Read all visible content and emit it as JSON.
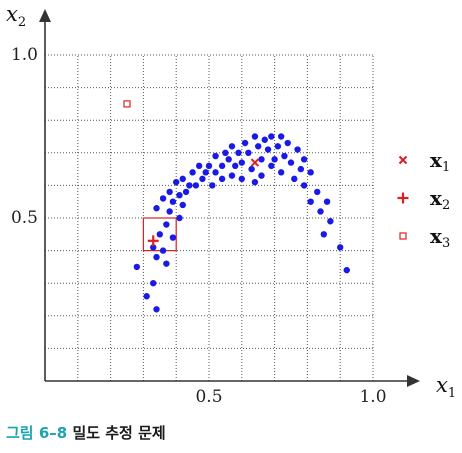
{
  "caption": {
    "figure": "그림 6–8",
    "title": "밀도 추정 문제"
  },
  "colors": {
    "points": "#1a1ae6",
    "markers": "#e02020",
    "grid": "#555555",
    "axis": "#333333"
  },
  "chart_data": {
    "type": "scatter",
    "xlabel": "x1",
    "ylabel": "x2",
    "xlim": [
      0,
      1.1
    ],
    "ylim": [
      0,
      1.1
    ],
    "xticks": [
      0.5,
      1.0
    ],
    "yticks": [
      0.5,
      1.0
    ],
    "xtick_labels": [
      "0.5",
      "1.0"
    ],
    "ytick_labels": [
      "0.5",
      "1.0"
    ],
    "grid": true,
    "legend_position": "right",
    "points": [
      [
        0.28,
        0.35
      ],
      [
        0.31,
        0.26
      ],
      [
        0.34,
        0.22
      ],
      [
        0.33,
        0.3
      ],
      [
        0.37,
        0.36
      ],
      [
        0.34,
        0.38
      ],
      [
        0.33,
        0.41
      ],
      [
        0.36,
        0.4
      ],
      [
        0.35,
        0.45
      ],
      [
        0.39,
        0.44
      ],
      [
        0.37,
        0.48
      ],
      [
        0.34,
        0.53
      ],
      [
        0.38,
        0.52
      ],
      [
        0.41,
        0.5
      ],
      [
        0.36,
        0.56
      ],
      [
        0.39,
        0.55
      ],
      [
        0.42,
        0.54
      ],
      [
        0.38,
        0.58
      ],
      [
        0.41,
        0.57
      ],
      [
        0.4,
        0.61
      ],
      [
        0.43,
        0.58
      ],
      [
        0.42,
        0.62
      ],
      [
        0.44,
        0.6
      ],
      [
        0.45,
        0.64
      ],
      [
        0.46,
        0.6
      ],
      [
        0.48,
        0.62
      ],
      [
        0.47,
        0.66
      ],
      [
        0.49,
        0.64
      ],
      [
        0.51,
        0.6
      ],
      [
        0.5,
        0.66
      ],
      [
        0.52,
        0.64
      ],
      [
        0.52,
        0.69
      ],
      [
        0.54,
        0.66
      ],
      [
        0.54,
        0.62
      ],
      [
        0.55,
        0.7
      ],
      [
        0.56,
        0.68
      ],
      [
        0.57,
        0.63
      ],
      [
        0.58,
        0.66
      ],
      [
        0.57,
        0.72
      ],
      [
        0.59,
        0.7
      ],
      [
        0.6,
        0.67
      ],
      [
        0.6,
        0.62
      ],
      [
        0.61,
        0.73
      ],
      [
        0.62,
        0.7
      ],
      [
        0.63,
        0.65
      ],
      [
        0.64,
        0.75
      ],
      [
        0.64,
        0.61
      ],
      [
        0.65,
        0.72
      ],
      [
        0.66,
        0.68
      ],
      [
        0.66,
        0.63
      ],
      [
        0.67,
        0.74
      ],
      [
        0.68,
        0.71
      ],
      [
        0.69,
        0.66
      ],
      [
        0.69,
        0.75
      ],
      [
        0.7,
        0.68
      ],
      [
        0.71,
        0.72
      ],
      [
        0.72,
        0.64
      ],
      [
        0.72,
        0.75
      ],
      [
        0.73,
        0.69
      ],
      [
        0.74,
        0.73
      ],
      [
        0.75,
        0.67
      ],
      [
        0.76,
        0.62
      ],
      [
        0.77,
        0.71
      ],
      [
        0.78,
        0.65
      ],
      [
        0.79,
        0.68
      ],
      [
        0.79,
        0.6
      ],
      [
        0.81,
        0.64
      ],
      [
        0.83,
        0.58
      ],
      [
        0.81,
        0.55
      ],
      [
        0.84,
        0.52
      ],
      [
        0.86,
        0.55
      ],
      [
        0.87,
        0.49
      ],
      [
        0.85,
        0.45
      ],
      [
        0.9,
        0.41
      ],
      [
        0.92,
        0.34
      ]
    ],
    "markers": [
      {
        "name": "x1",
        "symbol": "x",
        "x": 0.64,
        "y": 0.67
      },
      {
        "name": "x2",
        "symbol": "+",
        "x": 0.33,
        "y": 0.43
      },
      {
        "name": "x3",
        "symbol": "square",
        "x": 0.25,
        "y": 0.85
      }
    ],
    "window": {
      "x": [
        0.3,
        0.4
      ],
      "y": [
        0.4,
        0.5
      ]
    },
    "legend": [
      {
        "symbol": "x",
        "label": "x",
        "sub": "1"
      },
      {
        "symbol": "+",
        "label": "x",
        "sub": "2"
      },
      {
        "symbol": "square",
        "label": "x",
        "sub": "3"
      }
    ]
  }
}
